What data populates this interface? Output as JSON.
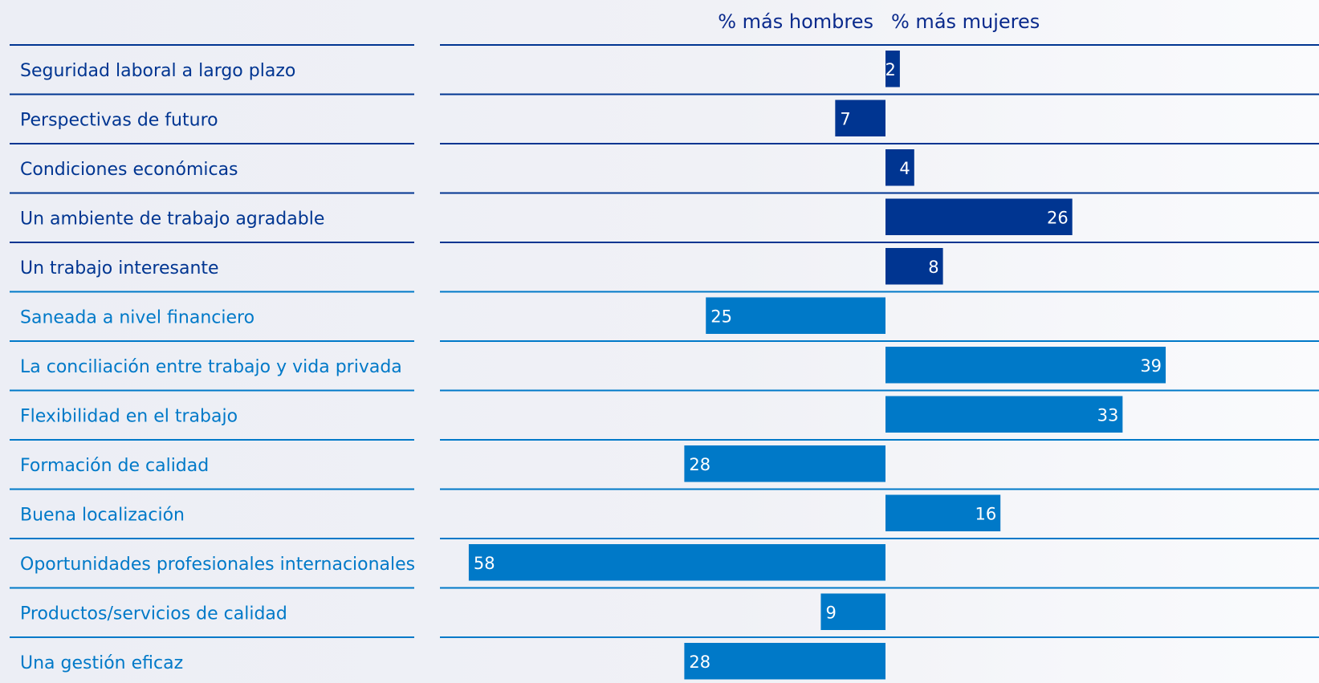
{
  "chart_data": {
    "type": "bar",
    "orientation": "horizontal",
    "direction_labels": {
      "left": "% más hombres",
      "right": "% más mujeres"
    },
    "categories": [
      "Seguridad laboral a largo plazo",
      "Perspectivas de futuro",
      "Condiciones económicas",
      "Un ambiente de trabajo agradable",
      "Un trabajo interesante",
      "Saneada a nivel financiero",
      "La conciliación entre trabajo y vida privada",
      "Flexibilidad en el trabajo",
      "Formación de calidad",
      "Buena localización",
      "Oportunidades profesionales internacionales",
      "Productos/servicios de calidad",
      "Una gestión eficaz"
    ],
    "values": [
      2,
      -7,
      4,
      26,
      8,
      -25,
      39,
      33,
      -28,
      16,
      -58,
      -9,
      -28
    ],
    "value_labels": [
      "2",
      "7",
      "4",
      "26",
      "8",
      "25",
      "39",
      "33",
      "28",
      "16",
      "58",
      "9",
      "28"
    ],
    "group_colors": [
      "#003591",
      "#003591",
      "#003591",
      "#003591",
      "#003591",
      "#0079c8",
      "#0079c8",
      "#0079c8",
      "#0079c8",
      "#0079c8",
      "#0079c8",
      "#0079c8",
      "#0079c8"
    ],
    "xlim": [
      -62,
      60
    ],
    "grid": false,
    "legend": "none"
  }
}
